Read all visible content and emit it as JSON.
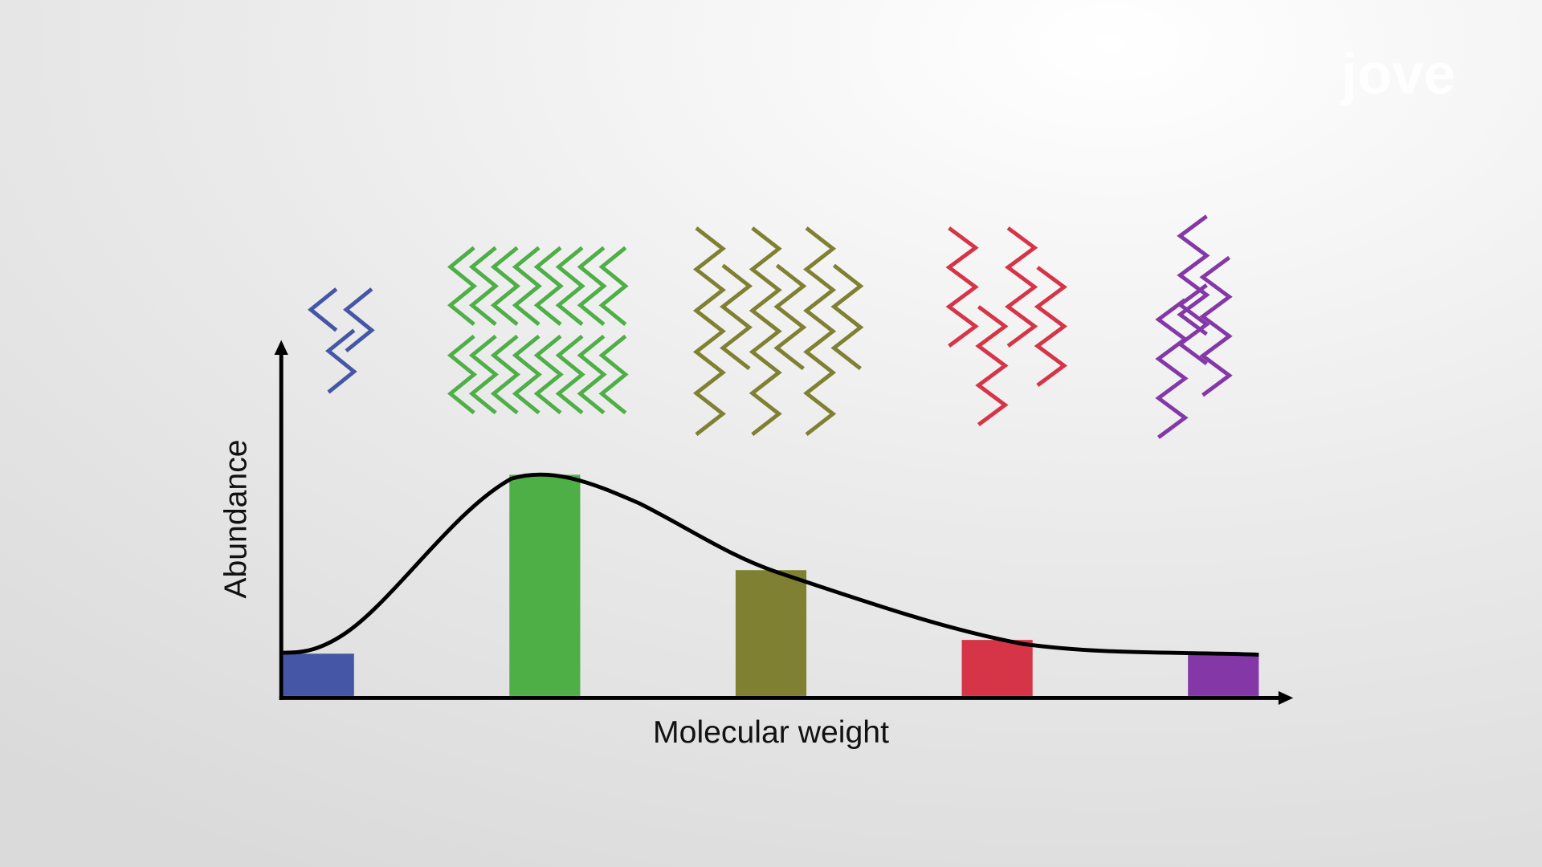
{
  "chart_data": {
    "type": "bar",
    "logo": "jove",
    "xlabel": "Molecular weight",
    "ylabel": "Abundance",
    "categories": [
      null,
      null,
      null,
      null,
      null
    ],
    "values": [
      43,
      225,
      128,
      57,
      42
    ],
    "colors": [
      "#4556a6",
      "#4daf45",
      "#808033",
      "#d63447",
      "#8438a8"
    ],
    "ylim": [
      0,
      360
    ]
  }
}
